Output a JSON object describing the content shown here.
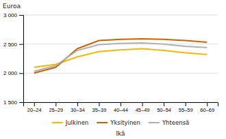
{
  "chart_data": {
    "type": "line",
    "ylabel": "Euroa",
    "xlabel": "Ikä",
    "categories": [
      "20–24",
      "25–29",
      "30–34",
      "35–39",
      "40–44",
      "45–49",
      "50–54",
      "55–59",
      "60–69"
    ],
    "series": [
      {
        "name": "Julkinen",
        "color": "#f5b800",
        "values": [
          2100,
          2150,
          2280,
          2370,
          2400,
          2420,
          2390,
          2350,
          2320
        ]
      },
      {
        "name": "Yksityinen",
        "color": "#c86400",
        "values": [
          2000,
          2100,
          2420,
          2560,
          2580,
          2590,
          2580,
          2560,
          2530
        ]
      },
      {
        "name": "Yhteensä",
        "color": "#b0b0b0",
        "values": [
          2030,
          2130,
          2390,
          2490,
          2510,
          2520,
          2500,
          2460,
          2440
        ]
      }
    ],
    "ylim": [
      1500,
      3000
    ],
    "yticks": [
      {
        "value": 1500,
        "label": "1 500"
      },
      {
        "value": 2000,
        "label": "2 000"
      },
      {
        "value": 2500,
        "label": "2 500"
      },
      {
        "value": 3000,
        "label": "3 000"
      }
    ],
    "grid": true,
    "legend": "bottom"
  }
}
